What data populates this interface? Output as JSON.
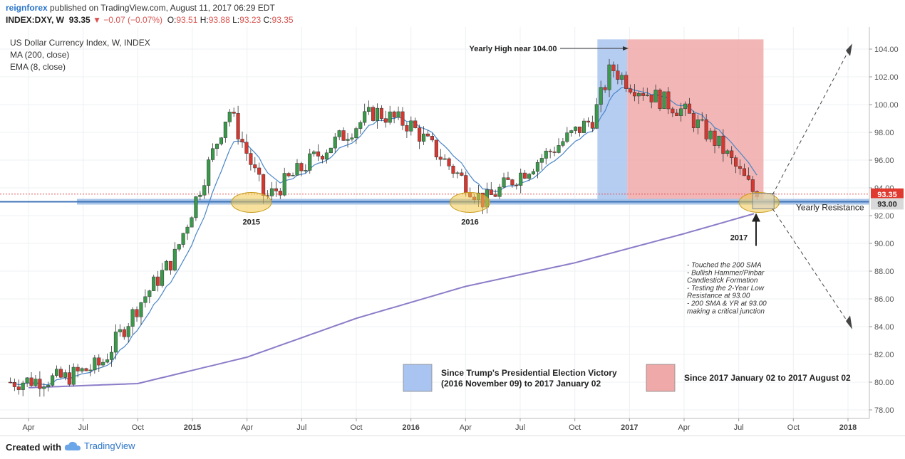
{
  "header": {
    "publisher": "reignforex",
    "published_text": "published on TradingView.com, August 11, 2017 06:29 EDT",
    "symbol": "INDEX:DXY, W",
    "price": "93.35",
    "change": "−0.07 (−0.07%)",
    "ohlc": {
      "o": "93.51",
      "h": "93.88",
      "l": "93.23",
      "c": "93.35"
    }
  },
  "footer": {
    "created_with": "Created with",
    "brand": "TradingView"
  },
  "chart_data": {
    "type": "candlestick",
    "title": "US Dollar Currency Index, W, INDEX",
    "indicators": [
      "MA (200, close)",
      "EMA (8, close)"
    ],
    "ylim": [
      77.2,
      105.2
    ],
    "y_ticks": [
      "78.00",
      "80.00",
      "82.00",
      "84.00",
      "86.00",
      "88.00",
      "90.00",
      "92.00",
      "94.00",
      "96.00",
      "98.00",
      "100.00",
      "102.00",
      "104.00"
    ],
    "x_ticks": [
      "Apr",
      "Jul",
      "Oct",
      "2015",
      "Apr",
      "Jul",
      "Oct",
      "2016",
      "Apr",
      "Jul",
      "Oct",
      "2017",
      "Apr",
      "Jul",
      "Oct",
      "2018"
    ],
    "price_path": [
      {
        "t": "2014-03",
        "v": 80.0
      },
      {
        "t": "2014-06",
        "v": 80.3
      },
      {
        "t": "2014-08",
        "v": 81.3
      },
      {
        "t": "2014-10",
        "v": 85.5
      },
      {
        "t": "2014-12",
        "v": 89.0
      },
      {
        "t": "2015-01",
        "v": 92.5
      },
      {
        "t": "2015-03",
        "v": 99.7
      },
      {
        "t": "2015-05",
        "v": 93.2
      },
      {
        "t": "2015-08",
        "v": 96.5
      },
      {
        "t": "2015-11",
        "v": 99.5
      },
      {
        "t": "2016-01",
        "v": 98.5
      },
      {
        "t": "2016-05",
        "v": 93.0
      },
      {
        "t": "2016-08",
        "v": 96.0
      },
      {
        "t": "2016-11",
        "v": 99.0
      },
      {
        "t": "2016-12",
        "v": 102.7
      },
      {
        "t": "2017-01",
        "v": 101.5
      },
      {
        "t": "2017-04",
        "v": 99.5
      },
      {
        "t": "2017-06",
        "v": 97.0
      },
      {
        "t": "2017-08",
        "v": 93.35
      }
    ],
    "ma200_path": [
      {
        "t": "2014-04",
        "v": 79.6
      },
      {
        "t": "2014-10",
        "v": 79.9
      },
      {
        "t": "2015-04",
        "v": 81.8
      },
      {
        "t": "2015-10",
        "v": 84.6
      },
      {
        "t": "2016-04",
        "v": 86.9
      },
      {
        "t": "2016-10",
        "v": 88.6
      },
      {
        "t": "2017-04",
        "v": 90.7
      },
      {
        "t": "2017-08",
        "v": 92.2
      }
    ],
    "last_price": "93.35",
    "resistance_level": "93.00",
    "resistance_label": "Yearly Resistance",
    "annotations": {
      "yearly_high": "Yearly High near 104.00",
      "year_2015": "2015",
      "year_2016": "2016",
      "year_2017": "2017",
      "notes": [
        "- Touched the 200 SMA",
        "- Bullish Hammer/Pinbar",
        "  Candlestick Formation",
        "- Testing the 2-Year Low",
        "  Resistance at 93.00",
        "- 200 SMA & YR at 93.00",
        "  making a critical junction"
      ]
    },
    "legend": [
      {
        "label_lines": [
          "Since Trump's Presidential Election Victory",
          "(2016 November 09) to 2017 January 02"
        ],
        "color": "#a9c4f0"
      },
      {
        "label_lines": [
          "Since 2017 January 02 to 2017 August 02"
        ],
        "color": "#f0a9a9"
      }
    ],
    "colors": {
      "up": "#3a9a4a",
      "down": "#d6372f",
      "ma": "#8c7cc8",
      "ema": "#4a86c8",
      "resistance": "#4a86c8"
    }
  }
}
